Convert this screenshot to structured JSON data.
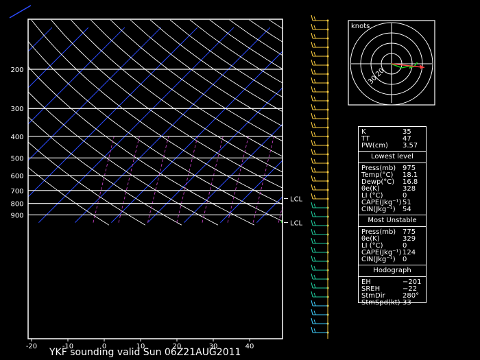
{
  "chart_data": {
    "type": "skew-t",
    "title": "YKF sounding valid Sun 06Z21AUG2011",
    "pressure_ticks": [
      200,
      300,
      400,
      500,
      600,
      700,
      800,
      900
    ],
    "temp_ticks": [
      -20,
      -10,
      0,
      10,
      20,
      30,
      40
    ],
    "xlim": [
      -20,
      50
    ],
    "plim": [
      130,
      975
    ],
    "lcl_levels": [
      {
        "label": "LCL",
        "pressure": 760
      },
      {
        "label": "LCL",
        "pressure": 975
      }
    ],
    "series": [
      {
        "name": "",
        "color": "#ff4040",
        "points": [
          [
            -4,
            130
          ],
          [
            10,
            190
          ],
          [
            6,
            200
          ],
          [
            6,
            250
          ],
          [
            13,
            300
          ],
          [
            17,
            380
          ],
          [
            19,
            450
          ],
          [
            19.5,
            500
          ],
          [
            17.5,
            600
          ],
          [
            18,
            700
          ],
          [
            18.5,
            800
          ],
          [
            19,
            850
          ],
          [
            19.5,
            900
          ],
          [
            18.1,
            975
          ]
        ]
      },
      {
        "name": "",
        "color": "#20d020",
        "points": [
          [
            -3,
            130
          ],
          [
            -8,
            160
          ],
          [
            -13,
            200
          ],
          [
            -12,
            240
          ],
          [
            -3,
            280
          ],
          [
            -4,
            300
          ],
          [
            4,
            350
          ],
          [
            7,
            400
          ],
          [
            5,
            450
          ],
          [
            5,
            480
          ],
          [
            11,
            520
          ],
          [
            15,
            560
          ],
          [
            16.5,
            600
          ],
          [
            17,
            700
          ],
          [
            17.5,
            800
          ],
          [
            17.5,
            850
          ],
          [
            16,
            900
          ],
          [
            16.8,
            975
          ]
        ]
      },
      {
        "name": "",
        "color": "#ffd040",
        "points": [
          [
            -5,
            130
          ],
          [
            3,
            200
          ],
          [
            7,
            250
          ],
          [
            11,
            300
          ],
          [
            14,
            350
          ],
          [
            16,
            400
          ],
          [
            18,
            450
          ],
          [
            19,
            500
          ],
          [
            18.5,
            550
          ],
          [
            18,
            600
          ],
          [
            18,
            650
          ],
          [
            17.5,
            700
          ],
          [
            17.5,
            750
          ],
          [
            17.5,
            800
          ],
          [
            17.5,
            850
          ],
          [
            17.5,
            900
          ],
          [
            17.5,
            975
          ]
        ]
      },
      {
        "name": "",
        "color": "#ff9040",
        "points": [
          [
            17,
            400
          ],
          [
            19,
            450
          ],
          [
            19.5,
            500
          ]
        ]
      }
    ],
    "hodograph": {
      "label": "knots",
      "ring_labels": [
        "20",
        "30"
      ],
      "ring_radii": [
        10,
        20,
        30,
        40
      ],
      "wind_trace": [
        [
          -1,
          0
        ],
        [
          15,
          -6
        ],
        [
          28,
          -3
        ],
        [
          27,
          -6
        ],
        [
          33,
          -4
        ],
        [
          35,
          -2
        ],
        [
          38,
          2
        ]
      ],
      "storm_motion_vector": [
        32,
        -6
      ]
    }
  },
  "stats": {
    "rows_top": [
      {
        "label": "K",
        "value": "35"
      },
      {
        "label": "TT",
        "value": "47"
      },
      {
        "label": "PW(cm)",
        "value": "3.57"
      }
    ],
    "lowest_title": "Lowest level",
    "rows_lowest": [
      {
        "label": "Press(mb)",
        "value": "975"
      },
      {
        "label": "Temp(°C)",
        "value": "18.1"
      },
      {
        "label": "Dewp(°C)",
        "value": "16.8"
      },
      {
        "label": "θe(K)",
        "value": "328"
      },
      {
        "label": "LI (°C)",
        "value": "0"
      },
      {
        "label": "CAPE(Jkg⁻¹)",
        "value": "51"
      },
      {
        "label": "CIN(Jkg⁻¹)",
        "value": "54"
      }
    ],
    "unstable_title": "Most Unstable",
    "rows_unstable": [
      {
        "label": "Press(mb)",
        "value": "775"
      },
      {
        "label": "θe(K)",
        "value": "329"
      },
      {
        "label": "LI (°C)",
        "value": "0"
      },
      {
        "label": "CAPE(Jkg⁻¹)",
        "value": "124"
      },
      {
        "label": "CIN(Jkg⁻¹)",
        "value": "0"
      }
    ],
    "hodo_title": "Hodograph",
    "rows_hodo": [
      {
        "label": "EH",
        "value": "−201"
      },
      {
        "label": "SREH",
        "value": "−22"
      },
      {
        "label": "StmDir",
        "value": "280°"
      },
      {
        "label": "StmSpd(kt)",
        "value": "33"
      }
    ]
  }
}
